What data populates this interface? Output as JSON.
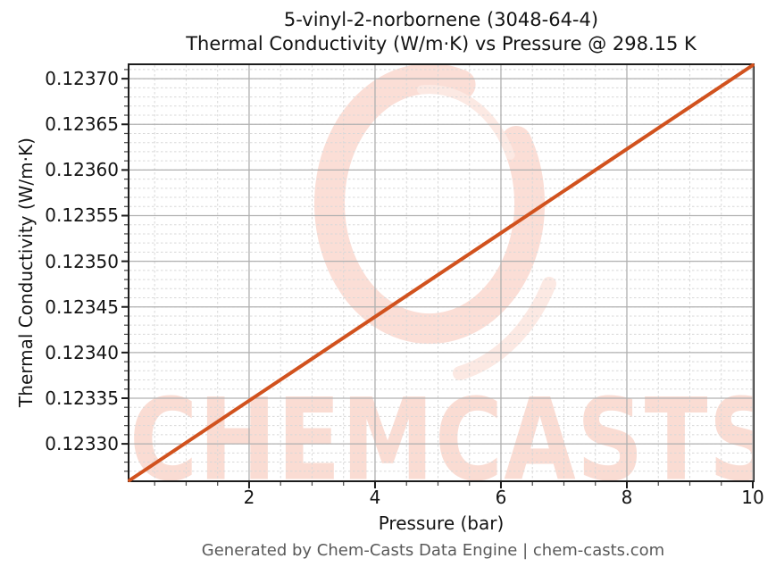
{
  "title": {
    "line1": "5-vinyl-2-norbornene (3048-64-4)",
    "line2": "Thermal Conductivity (W/m·K) vs Pressure @ 298.15 K"
  },
  "footer": "Generated by Chem-Casts Data Engine | chem-casts.com",
  "watermark": {
    "text": "CHEMCASTS",
    "text_color": "#fadcd3",
    "ring_color": "#fbded6",
    "ring_accent_color": "#fce9e3"
  },
  "chart_data": {
    "type": "line",
    "title": "5-vinyl-2-norbornene (3048-64-4) — Thermal Conductivity (W/m·K) vs Pressure @ 298.15 K",
    "xlabel": "Pressure (bar)",
    "ylabel": "Thermal Conductivity (W/m·K)",
    "temperature": "298.15 K",
    "cas_number": "3048-64-4",
    "compound": "5-vinyl-2-norbornene",
    "xlim": [
      0.1,
      10
    ],
    "ylim": [
      0.12326,
      0.1237148
    ],
    "xticks": [
      2,
      4,
      6,
      8,
      10
    ],
    "xtick_labels": [
      "2",
      "4",
      "6",
      "8",
      "10"
    ],
    "x_minor_step": 0.5,
    "yticks": [
      0.1233,
      0.12335,
      0.1234,
      0.12345,
      0.1235,
      0.12355,
      0.1236,
      0.12365,
      0.1237
    ],
    "ytick_labels": [
      "0.12330",
      "0.12335",
      "0.12340",
      "0.12345",
      "0.12350",
      "0.12355",
      "0.12360",
      "0.12365",
      "0.12370"
    ],
    "y_minor_step": 1e-05,
    "grid": true,
    "legend": "none",
    "series": [
      {
        "name": "Thermal Conductivity",
        "color": "#d1521e",
        "x": [
          0.1,
          1,
          2,
          3,
          4,
          5,
          6,
          7,
          8,
          9,
          10
        ],
        "y": [
          0.12326,
          0.1233013,
          0.1233473,
          0.1233932,
          0.1234392,
          0.1234851,
          0.123531,
          0.123577,
          0.1236229,
          0.1236689,
          0.1237148
        ]
      }
    ],
    "colors": {
      "line": "#d1521e",
      "grid_major": "#b0b0b0",
      "grid_minor": "#d8d8d8",
      "spine": "#1c1c1c",
      "text": "#141414",
      "footer_text": "#595959"
    }
  }
}
